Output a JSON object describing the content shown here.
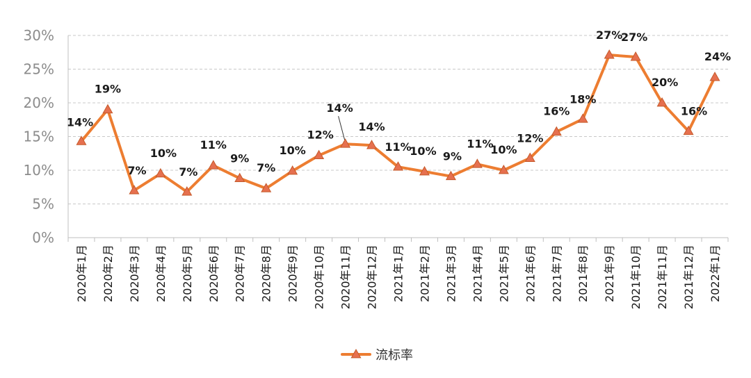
{
  "chart_data": {
    "type": "line",
    "title": "",
    "xlabel": "",
    "ylabel": "",
    "ylim": [
      0,
      30
    ],
    "yticks": [
      "0%",
      "5%",
      "10%",
      "15%",
      "20%",
      "25%",
      "30%"
    ],
    "grid": "horizontal-dashed",
    "legend_position": "bottom-center",
    "categories": [
      "2020年1月",
      "2020年2月",
      "2020年3月",
      "2020年4月",
      "2020年5月",
      "2020年6月",
      "2020年7月",
      "2020年8月",
      "2020年9月",
      "2020年10月",
      "2020年11月",
      "2020年12月",
      "2021年1月",
      "2021年2月",
      "2021年3月",
      "2021年4月",
      "2021年5月",
      "2021年6月",
      "2021年7月",
      "2021年8月",
      "2021年9月",
      "2021年10月",
      "2021年11月",
      "2021年12月",
      "2022年1月"
    ],
    "series": [
      {
        "name": "流标率",
        "color": "#ed7d31",
        "marker_fill": "#e6704f",
        "marker": "triangle",
        "values": [
          14.3,
          19.0,
          7.0,
          9.5,
          6.8,
          10.7,
          8.8,
          7.3,
          9.9,
          12.2,
          13.9,
          13.7,
          10.5,
          9.8,
          9.1,
          10.9,
          10.0,
          11.8,
          15.7,
          17.6,
          27.1,
          26.8,
          20.0,
          15.8,
          23.8
        ],
        "labels": [
          "14%",
          "19%",
          "7%",
          "10%",
          "7%",
          "11%",
          "9%",
          "7%",
          "10%",
          "12%",
          "14%",
          "14%",
          "11%",
          "10%",
          "9%",
          "11%",
          "10%",
          "12%",
          "16%",
          "18%",
          "27%",
          "27%",
          "20%",
          "16%",
          "24%"
        ]
      }
    ]
  }
}
